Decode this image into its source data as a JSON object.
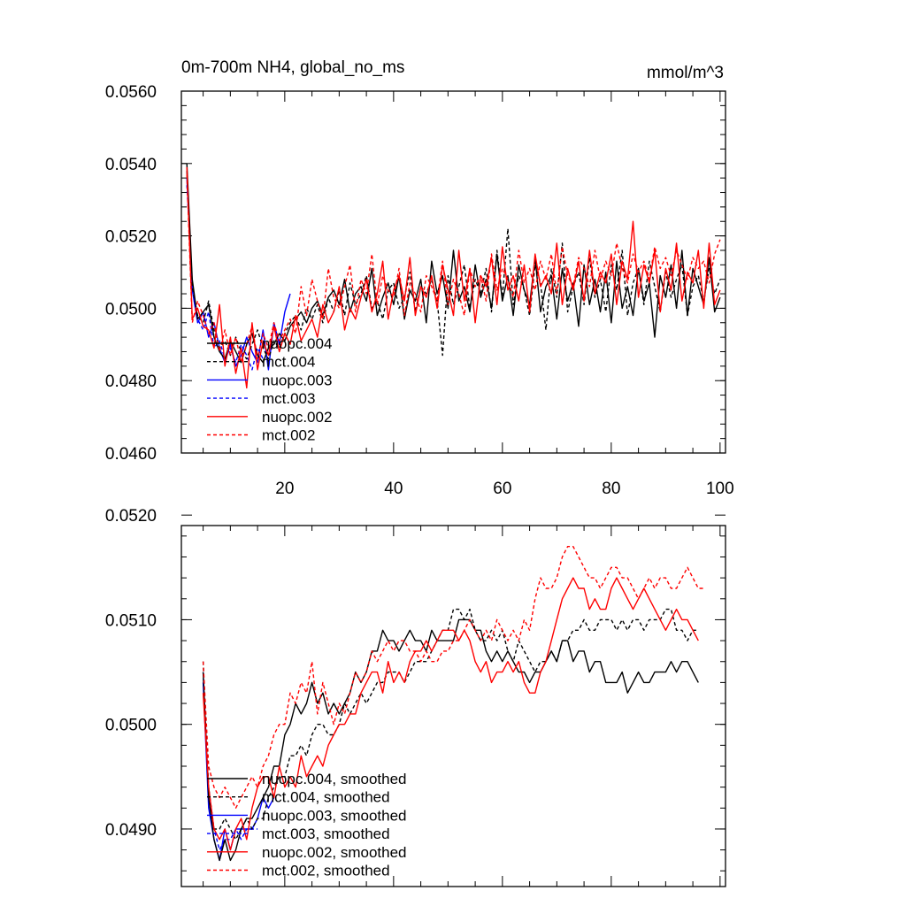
{
  "chart_data": [
    {
      "type": "line",
      "title": "0m-700m NH4, global_no_ms",
      "units": "mmol/m^3",
      "xlim": [
        1,
        101
      ],
      "ylim": [
        0.046,
        0.056
      ],
      "xticks": [
        20,
        40,
        60,
        80,
        100
      ],
      "xtick_labels": [
        "20",
        "40",
        "60",
        "80",
        "100"
      ],
      "yticks": [
        0.046,
        0.048,
        0.05,
        0.052,
        0.054,
        0.056
      ],
      "ytick_labels": [
        "0.0460",
        "0.0480",
        "0.0500",
        "0.0520",
        "0.0540",
        "0.0560"
      ],
      "legend_position": "bottom-left",
      "series": [
        {
          "name": "nuopc.004",
          "color": "#000000",
          "dash": "solid",
          "x0": 2,
          "values": [
            0.054,
            0.0508,
            0.0497,
            0.0499,
            0.0501,
            0.0492,
            0.0488,
            0.0486,
            0.0491,
            0.0488,
            0.0485,
            0.049,
            0.0493,
            0.0487,
            0.0485,
            0.0489,
            0.049,
            0.0493,
            0.0491,
            0.0495,
            0.0497,
            0.0499,
            0.0496,
            0.05,
            0.0502,
            0.0498,
            0.0503,
            0.0505,
            0.0501,
            0.0508,
            0.0499,
            0.0504,
            0.0506,
            0.0502,
            0.0511,
            0.0498,
            0.0503,
            0.0507,
            0.0501,
            0.0509,
            0.0497,
            0.0505,
            0.0502,
            0.0508,
            0.0496,
            0.0513,
            0.0504,
            0.0509,
            0.05,
            0.0516,
            0.0502,
            0.0506,
            0.0499,
            0.0512,
            0.0503,
            0.0508,
            0.05,
            0.0515,
            0.0502,
            0.0509,
            0.0498,
            0.0512,
            0.0505,
            0.0501,
            0.0514,
            0.0499,
            0.0506,
            0.0509,
            0.0497,
            0.0511,
            0.0502,
            0.0507,
            0.0495,
            0.0512,
            0.0501,
            0.0508,
            0.0499,
            0.051,
            0.0496,
            0.0513,
            0.05,
            0.0506,
            0.0498,
            0.0511,
            0.0502,
            0.0507,
            0.0492,
            0.0509,
            0.0503,
            0.0512,
            0.05,
            0.0516,
            0.0498,
            0.0511,
            0.0506,
            0.0501,
            0.0514,
            0.0499,
            0.0503
          ]
        },
        {
          "name": "mct.004",
          "color": "#000000",
          "dash": "dashed",
          "x0": 2,
          "values": [
            0.0538,
            0.0506,
            0.0498,
            0.0496,
            0.0502,
            0.0494,
            0.0489,
            0.0491,
            0.0487,
            0.0492,
            0.0488,
            0.0486,
            0.049,
            0.0494,
            0.0489,
            0.0486,
            0.0491,
            0.0489,
            0.0493,
            0.0496,
            0.0498,
            0.0494,
            0.05,
            0.0497,
            0.0501,
            0.0496,
            0.0503,
            0.0499,
            0.0505,
            0.0498,
            0.0507,
            0.0501,
            0.0504,
            0.0509,
            0.05,
            0.0502,
            0.0497,
            0.0505,
            0.0507,
            0.05,
            0.0503,
            0.051,
            0.0499,
            0.0506,
            0.0504,
            0.0508,
            0.0502,
            0.0487,
            0.0509,
            0.0501,
            0.0506,
            0.0512,
            0.05,
            0.0508,
            0.0504,
            0.0511,
            0.0499,
            0.0516,
            0.0503,
            0.0522,
            0.0501,
            0.0509,
            0.0505,
            0.0498,
            0.0512,
            0.0507,
            0.0494,
            0.0511,
            0.0503,
            0.0518,
            0.0499,
            0.0506,
            0.051,
            0.0501,
            0.0514,
            0.0503,
            0.0508,
            0.0499,
            0.0512,
            0.0505,
            0.0516,
            0.0498,
            0.0507,
            0.0511,
            0.0501,
            0.0513,
            0.0506,
            0.0499,
            0.051,
            0.0503,
            0.0508,
            0.0512,
            0.0498,
            0.0506,
            0.0509,
            0.0502,
            0.0511,
            0.0504,
            0.0508
          ]
        },
        {
          "name": "nuopc.003",
          "color": "#0000ff",
          "dash": "solid",
          "x0": 2,
          "values": [
            0.0536,
            0.0505,
            0.0496,
            0.0499,
            0.0492,
            0.0496,
            0.0489,
            0.0485,
            0.049,
            0.0484,
            0.0487,
            0.0492,
            0.0488,
            0.0485,
            0.0494,
            0.0483,
            0.0496,
            0.049,
            0.0499,
            0.0504
          ]
        },
        {
          "name": "mct.003",
          "color": "#0000ff",
          "dash": "dashed",
          "x0": 2,
          "values": [
            0.0534,
            0.0507,
            0.0497,
            0.0494,
            0.0499,
            0.0489,
            0.0491,
            0.0486,
            0.0489,
            0.0485,
            0.049,
            0.0487,
            0.0483,
            0.0489,
            0.0486
          ]
        },
        {
          "name": "nuopc.002",
          "color": "#ff0000",
          "dash": "solid",
          "x0": 2,
          "values": [
            0.0539,
            0.0497,
            0.05,
            0.0495,
            0.0494,
            0.0489,
            0.0501,
            0.0484,
            0.0492,
            0.0482,
            0.0489,
            0.0478,
            0.0496,
            0.0483,
            0.0491,
            0.0487,
            0.0495,
            0.0488,
            0.0493,
            0.049,
            0.0498,
            0.0491,
            0.0494,
            0.0497,
            0.0492,
            0.0501,
            0.0496,
            0.0499,
            0.0506,
            0.0494,
            0.05,
            0.0497,
            0.0503,
            0.0508,
            0.0499,
            0.0504,
            0.0513,
            0.0497,
            0.0505,
            0.0509,
            0.0502,
            0.0514,
            0.0498,
            0.0506,
            0.0503,
            0.0509,
            0.05,
            0.0512,
            0.0505,
            0.0498,
            0.0516,
            0.0502,
            0.0511,
            0.0496,
            0.0509,
            0.0506,
            0.0514,
            0.0501,
            0.0517,
            0.0505,
            0.0509,
            0.0502,
            0.0512,
            0.0499,
            0.0515,
            0.0506,
            0.0509,
            0.0504,
            0.0518,
            0.0501,
            0.0511,
            0.0505,
            0.0513,
            0.0502,
            0.0516,
            0.0504,
            0.051,
            0.0507,
            0.0515,
            0.0501,
            0.0513,
            0.0508,
            0.0524,
            0.0503,
            0.0512,
            0.0507,
            0.0516,
            0.0499,
            0.0511,
            0.0505,
            0.0518,
            0.0502,
            0.051,
            0.0507,
            0.0516,
            0.05,
            0.0518,
            0.0501,
            0.0505
          ]
        },
        {
          "name": "mct.002",
          "color": "#ff0000",
          "dash": "dashed",
          "x0": 2,
          "values": [
            0.0537,
            0.0496,
            0.0502,
            0.0498,
            0.0493,
            0.0496,
            0.0488,
            0.0494,
            0.0487,
            0.0492,
            0.0485,
            0.049,
            0.0495,
            0.0486,
            0.0493,
            0.0489,
            0.0496,
            0.0491,
            0.0494,
            0.0497,
            0.0493,
            0.0506,
            0.0498,
            0.0508,
            0.0502,
            0.0497,
            0.0511,
            0.0503,
            0.05,
            0.0506,
            0.0512,
            0.0499,
            0.0508,
            0.0504,
            0.0515,
            0.0501,
            0.0509,
            0.0505,
            0.0503,
            0.0511,
            0.0498,
            0.0507,
            0.0504,
            0.0499,
            0.0509,
            0.0506,
            0.0502,
            0.0513,
            0.0501,
            0.0508,
            0.0504,
            0.0498,
            0.0511,
            0.0506,
            0.0509,
            0.0502,
            0.0515,
            0.0505,
            0.0511,
            0.0508,
            0.0503,
            0.0516,
            0.0507,
            0.0511,
            0.0505,
            0.0513,
            0.0508,
            0.0515,
            0.0504,
            0.0517,
            0.0509,
            0.0506,
            0.0514,
            0.0511,
            0.0506,
            0.0516,
            0.0508,
            0.0513,
            0.0509,
            0.0518,
            0.0511,
            0.0507,
            0.0515,
            0.051,
            0.0513,
            0.0508,
            0.0517,
            0.0511,
            0.0514,
            0.0509,
            0.0516,
            0.0512,
            0.0508,
            0.0514,
            0.0511,
            0.0513,
            0.0507,
            0.0515,
            0.0519
          ]
        }
      ]
    },
    {
      "type": "line",
      "title": "",
      "xlim": [
        1,
        101
      ],
      "ylim": [
        0.04845,
        0.0519
      ],
      "xticks": [
        20,
        40,
        60,
        80,
        100
      ],
      "xtick_labels": [],
      "yticks": [
        0.049,
        0.05,
        0.051,
        0.052
      ],
      "ytick_labels": [
        "0.0490",
        "0.0500",
        "0.0510",
        "0.0520"
      ],
      "legend_position": "bottom-left",
      "series": [
        {
          "name": "nuopc.004, smoothed",
          "color": "#000000",
          "dash": "solid",
          "x0": 5,
          "values": [
            0.0505,
            0.0493,
            0.0489,
            0.0487,
            0.0489,
            0.0487,
            0.0488,
            0.049,
            0.0491,
            0.0491,
            0.0492,
            0.0493,
            0.0494,
            0.0496,
            0.0496,
            0.0499,
            0.05,
            0.0502,
            0.0501,
            0.0502,
            0.0504,
            0.0502,
            0.0503,
            0.0501,
            0.0502,
            0.0501,
            0.0502,
            0.0503,
            0.0505,
            0.0504,
            0.0505,
            0.0507,
            0.0507,
            0.0509,
            0.0508,
            0.0508,
            0.0507,
            0.0508,
            0.0509,
            0.0508,
            0.0508,
            0.0507,
            0.0509,
            0.0508,
            0.0508,
            0.0508,
            0.0508,
            0.051,
            0.051,
            0.051,
            0.0509,
            0.0509,
            0.0507,
            0.0506,
            0.0507,
            0.0506,
            0.0507,
            0.0506,
            0.0505,
            0.0505,
            0.0504,
            0.0505,
            0.0505,
            0.0506,
            0.0507,
            0.0506,
            0.0508,
            0.0508,
            0.0506,
            0.0507,
            0.0507,
            0.0505,
            0.0506,
            0.0506,
            0.0504,
            0.0504,
            0.0504,
            0.0505,
            0.0503,
            0.0504,
            0.0505,
            0.0504,
            0.0504,
            0.0505,
            0.0505,
            0.0505,
            0.0506,
            0.0505,
            0.0506,
            0.0506,
            0.0505,
            0.0504
          ]
        },
        {
          "name": "mct.004, smoothed",
          "color": "#000000",
          "dash": "dashed",
          "x0": 5,
          "values": [
            0.0506,
            0.0494,
            0.049,
            0.049,
            0.0491,
            0.049,
            0.0489,
            0.049,
            0.0491,
            0.049,
            0.0491,
            0.0491,
            0.0493,
            0.0494,
            0.0495,
            0.0495,
            0.0497,
            0.0497,
            0.0498,
            0.0497,
            0.0499,
            0.05,
            0.05,
            0.0499,
            0.0499,
            0.05,
            0.0502,
            0.0501,
            0.0502,
            0.0503,
            0.0502,
            0.0503,
            0.0504,
            0.0504,
            0.0505,
            0.0505,
            0.0505,
            0.0504,
            0.0505,
            0.0506,
            0.0506,
            0.0506,
            0.0507,
            0.0508,
            0.0509,
            0.0509,
            0.0511,
            0.0511,
            0.051,
            0.0511,
            0.0509,
            0.0508,
            0.0508,
            0.0509,
            0.0508,
            0.0509,
            0.0507,
            0.0506,
            0.0508,
            0.0507,
            0.0506,
            0.0505,
            0.0506,
            0.0506,
            0.0507,
            0.0506,
            0.0508,
            0.0508,
            0.0509,
            0.0509,
            0.051,
            0.0509,
            0.0509,
            0.051,
            0.051,
            0.051,
            0.0509,
            0.051,
            0.0509,
            0.051,
            0.051,
            0.0509,
            0.051,
            0.051,
            0.051,
            0.0511,
            0.0511,
            0.0509,
            0.0509,
            0.0508,
            0.0509,
            0.0509
          ]
        },
        {
          "name": "nuopc.003, smoothed",
          "color": "#0000ff",
          "dash": "solid",
          "x0": 5,
          "values": [
            0.0504,
            0.0492,
            0.0489,
            0.0487,
            0.049,
            0.0488,
            0.049,
            0.049,
            0.049,
            0.049,
            0.0491,
            0.0493,
            0.0492,
            0.0493
          ]
        },
        {
          "name": "mct.003, smoothed",
          "color": "#0000ff",
          "dash": "dashed",
          "x0": 5,
          "values": [
            0.0505,
            0.0493,
            0.049,
            0.0488,
            0.0489,
            0.0489,
            0.049,
            0.0489,
            0.049,
            0.049,
            0.049
          ]
        },
        {
          "name": "nuopc.002, smoothed",
          "color": "#ff0000",
          "dash": "solid",
          "x0": 5,
          "values": [
            0.0503,
            0.0494,
            0.049,
            0.0489,
            0.049,
            0.0488,
            0.049,
            0.0491,
            0.0489,
            0.0492,
            0.0494,
            0.0495,
            0.0495,
            0.0493,
            0.0496,
            0.0494,
            0.0495,
            0.0494,
            0.0497,
            0.0495,
            0.0496,
            0.0497,
            0.0496,
            0.0498,
            0.0499,
            0.05,
            0.05,
            0.0501,
            0.0501,
            0.0503,
            0.0504,
            0.0505,
            0.0505,
            0.0503,
            0.0506,
            0.0504,
            0.0505,
            0.0504,
            0.0506,
            0.0507,
            0.0507,
            0.0508,
            0.0507,
            0.0508,
            0.0509,
            0.0509,
            0.0509,
            0.0508,
            0.0509,
            0.0508,
            0.0506,
            0.0505,
            0.0506,
            0.0504,
            0.0505,
            0.0505,
            0.0506,
            0.0505,
            0.0506,
            0.0504,
            0.0503,
            0.0503,
            0.0505,
            0.0506,
            0.0508,
            0.051,
            0.0512,
            0.0513,
            0.0514,
            0.0513,
            0.0513,
            0.0511,
            0.0512,
            0.0511,
            0.0511,
            0.0513,
            0.0514,
            0.0513,
            0.0512,
            0.0511,
            0.0512,
            0.0513,
            0.0512,
            0.0511,
            0.051,
            0.0509,
            0.051,
            0.0511,
            0.051,
            0.051,
            0.0509,
            0.0508
          ]
        },
        {
          "name": "mct.002, smoothed",
          "color": "#ff0000",
          "dash": "dashed",
          "x0": 5,
          "values": [
            0.0506,
            0.0496,
            0.0494,
            0.0493,
            0.0494,
            0.0493,
            0.0492,
            0.0493,
            0.0494,
            0.0495,
            0.0494,
            0.0496,
            0.0497,
            0.0499,
            0.05,
            0.05,
            0.0503,
            0.0502,
            0.0504,
            0.0503,
            0.0506,
            0.0501,
            0.0504,
            0.0502,
            0.05,
            0.0502,
            0.0501,
            0.0503,
            0.0505,
            0.0504,
            0.0505,
            0.0507,
            0.0506,
            0.0507,
            0.0508,
            0.0507,
            0.0508,
            0.0508,
            0.0507,
            0.0507,
            0.0506,
            0.0507,
            0.0506,
            0.0506,
            0.0507,
            0.0507,
            0.0508,
            0.0508,
            0.0509,
            0.051,
            0.0509,
            0.0508,
            0.0509,
            0.0508,
            0.051,
            0.0509,
            0.0508,
            0.0509,
            0.0508,
            0.051,
            0.0509,
            0.0512,
            0.0514,
            0.0513,
            0.0513,
            0.0514,
            0.0516,
            0.0517,
            0.0517,
            0.0516,
            0.0515,
            0.0514,
            0.0514,
            0.0513,
            0.0514,
            0.0515,
            0.0515,
            0.0514,
            0.0514,
            0.0513,
            0.0512,
            0.0513,
            0.0514,
            0.0513,
            0.0514,
            0.0514,
            0.0513,
            0.0513,
            0.0514,
            0.0515,
            0.0514,
            0.0513,
            0.0513
          ]
        }
      ]
    }
  ]
}
